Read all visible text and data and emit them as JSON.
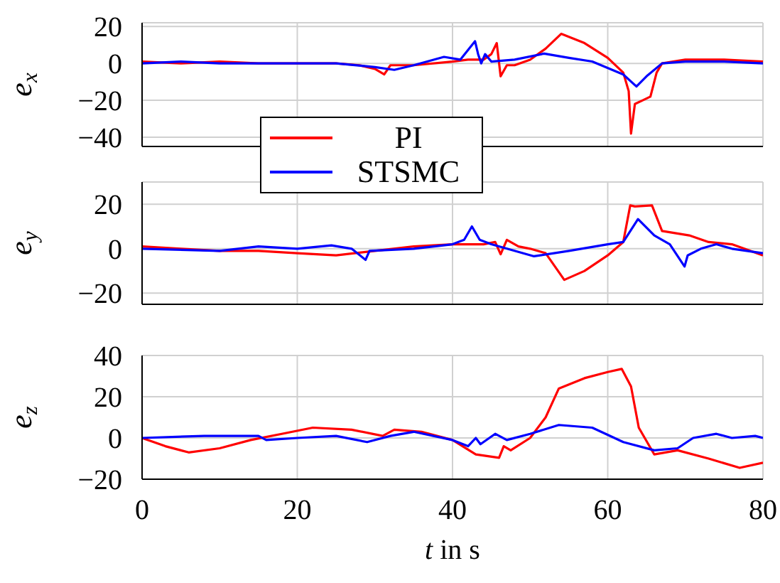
{
  "chart_data": [
    {
      "type": "line",
      "ylabel": "e$_{x}$",
      "xlim": [
        0,
        80
      ],
      "xticks": [
        0,
        20,
        40,
        60,
        80
      ],
      "ylim": [
        -45,
        22
      ],
      "yticks": [
        -40,
        -20,
        0,
        20
      ],
      "grid": true,
      "tick_labels": "y",
      "legend": "bottom",
      "series": [
        {
          "name": "PI",
          "color": "#ff0000",
          "x": [
            0,
            5,
            10,
            15,
            20,
            25,
            28,
            30,
            31.2,
            32,
            35,
            40,
            42,
            44,
            45,
            45.7,
            46.2,
            47,
            48,
            50,
            52,
            54,
            57,
            60,
            62,
            62.7,
            63,
            63.5,
            64.5,
            65.5,
            66.3,
            67,
            70,
            75,
            80
          ],
          "values": [
            1,
            0,
            1,
            0,
            0,
            0,
            -1,
            -3,
            -6,
            -1,
            -1,
            1,
            2,
            2,
            5,
            11,
            -7,
            -1,
            -1,
            2,
            8,
            16,
            11,
            3,
            -5,
            -15,
            -38,
            -22,
            -20,
            -18,
            -5,
            0,
            2,
            2,
            1
          ]
        },
        {
          "name": "STSMC",
          "color": "#0000ff",
          "x": [
            0,
            5,
            10,
            15,
            20,
            25,
            30,
            32.5,
            35,
            38.9,
            41,
            42.9,
            43.3,
            43.7,
            44.2,
            45,
            48,
            51.8,
            55,
            58,
            62,
            63.7,
            65,
            67,
            70,
            75,
            80
          ],
          "values": [
            0,
            1,
            0,
            0,
            0,
            0,
            -2,
            -3.5,
            -1,
            3.5,
            2,
            12,
            5,
            0,
            5,
            1,
            2,
            5.3,
            3,
            1,
            -6,
            -12.5,
            -7,
            0,
            1,
            1,
            0
          ]
        }
      ]
    },
    {
      "type": "line",
      "ylabel": "e$_{y}$",
      "xlim": [
        0,
        80
      ],
      "xticks": [
        0,
        20,
        40,
        60,
        80
      ],
      "ylim": [
        -25,
        30
      ],
      "yticks": [
        -20,
        0,
        20
      ],
      "grid": true,
      "tick_labels": "y",
      "series": [
        {
          "color": "#ff0000",
          "x": [
            0,
            5,
            10,
            15,
            20,
            25,
            30,
            35,
            40,
            44,
            45.5,
            46.2,
            47,
            48.5,
            50,
            52,
            54.4,
            57,
            60,
            62,
            62.9,
            63.5,
            65.7,
            67,
            70.5,
            73,
            76,
            80
          ],
          "values": [
            1,
            0,
            -1,
            -1,
            -2,
            -3,
            -1,
            1,
            2,
            2,
            3,
            -2.5,
            4,
            1,
            0,
            -2,
            -14,
            -10,
            -3,
            3,
            19.5,
            19,
            19.5,
            8,
            6,
            3,
            2,
            -3
          ]
        },
        {
          "color": "#0000ff",
          "x": [
            0,
            10,
            15,
            20,
            24.4,
            27,
            28.8,
            29.3,
            35,
            40,
            41.5,
            42.5,
            43.5,
            45,
            50.5,
            55,
            60,
            62,
            63.9,
            66,
            68,
            69.9,
            70.3,
            72,
            74,
            76,
            80
          ],
          "values": [
            0,
            -1,
            1,
            0,
            1.5,
            0,
            -5,
            -1,
            0,
            2,
            4,
            10,
            4,
            2,
            -3.4,
            -1,
            2,
            3,
            13.3,
            6,
            2,
            -8,
            -3,
            0,
            2,
            0,
            -2
          ]
        }
      ]
    },
    {
      "type": "line",
      "ylabel": "e$_{z}$",
      "xlabel": "t in s",
      "xlim": [
        0,
        80
      ],
      "xticks": [
        0,
        20,
        40,
        60,
        80
      ],
      "ylim": [
        -20,
        40
      ],
      "yticks": [
        -20,
        0,
        20,
        40
      ],
      "grid": true,
      "series": [
        {
          "color": "#ff0000",
          "x": [
            0,
            3,
            6,
            10,
            14,
            18,
            22,
            27,
            31,
            32.5,
            36,
            40,
            43,
            46,
            46.6,
            47.5,
            50,
            52,
            53.7,
            57,
            60,
            61.8,
            63,
            64,
            66,
            69,
            73,
            77,
            80
          ],
          "values": [
            0,
            -4,
            -7,
            -5,
            -1,
            2,
            5,
            4,
            1,
            4,
            3,
            -1,
            -8,
            -9.6,
            -4,
            -6,
            0,
            10,
            24,
            29,
            32,
            33.5,
            25,
            5,
            -8,
            -6,
            -10,
            -14.5,
            -12
          ]
        },
        {
          "color": "#0000ff",
          "x": [
            0,
            8,
            15,
            16,
            20,
            25,
            29,
            32,
            35,
            40,
            42,
            43,
            43.6,
            45.5,
            47,
            50,
            53.7,
            58,
            62,
            66,
            69,
            71,
            74,
            76,
            79,
            80
          ],
          "values": [
            0,
            1,
            1,
            -1,
            0,
            1,
            -2,
            1,
            3,
            -1,
            -4,
            0,
            -3,
            2,
            -1,
            2,
            6.3,
            5,
            -2,
            -6,
            -5,
            0,
            2,
            0,
            1,
            0
          ]
        }
      ]
    }
  ]
}
